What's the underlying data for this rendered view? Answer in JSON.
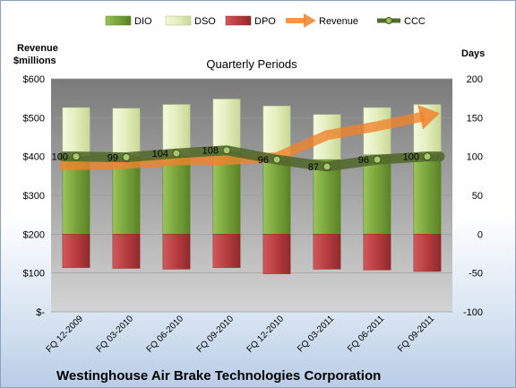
{
  "chart_data": {
    "type": "bar",
    "title": "Quarterly Periods",
    "company": "Westinghouse Air Brake Technologies Corporation",
    "left_axis_label": [
      "Revenue",
      "$millions"
    ],
    "right_axis_label": "Days",
    "left_axis": {
      "range": [
        0,
        600
      ],
      "ticks": [
        "$-",
        "$100",
        "$200",
        "$300",
        "$400",
        "$500",
        "$600"
      ]
    },
    "right_axis": {
      "range": [
        -100,
        200
      ],
      "ticks": [
        "-100",
        "-50",
        "0",
        "50",
        "100",
        "150",
        "200"
      ]
    },
    "categories": [
      "FQ 12-2009",
      "FQ 03-2010",
      "FQ 06-2010",
      "FQ 09-2010",
      "FQ 12-2010",
      "FQ 03-2011",
      "FQ 06-2011",
      "FQ 09-2011"
    ],
    "legend": [
      "DIO",
      "DSO",
      "DPO",
      "Revenue",
      "CCC"
    ],
    "legend_position": "top",
    "grid": true,
    "series": [
      {
        "name": "DIO",
        "axis": "right",
        "kind": "stacked-bar",
        "color": "#77a33b",
        "values": [
          100,
          100,
          101,
          106,
          98,
          96,
          102,
          103
        ]
      },
      {
        "name": "DSO",
        "axis": "right",
        "kind": "stacked-bar",
        "color": "#e6f0c3",
        "values": [
          63,
          62,
          66,
          68,
          67,
          58,
          61,
          64
        ]
      },
      {
        "name": "DPO",
        "axis": "right",
        "kind": "stacked-bar",
        "color": "#b83c3f",
        "values": [
          -43,
          -44,
          -45,
          -43,
          -51,
          -45,
          -46,
          -48
        ]
      },
      {
        "name": "Revenue",
        "axis": "left",
        "kind": "arrow-line",
        "color": "#f0832c",
        "values": [
          378,
          381,
          390,
          391,
          398,
          455,
          478,
          505
        ]
      },
      {
        "name": "CCC",
        "axis": "right",
        "kind": "line",
        "color": "#53692f",
        "values": [
          100,
          99,
          104,
          108,
          96,
          87,
          96,
          100
        ],
        "labels": [
          "100",
          "99",
          "104",
          "108",
          "96",
          "87",
          "96",
          "100"
        ]
      }
    ]
  }
}
